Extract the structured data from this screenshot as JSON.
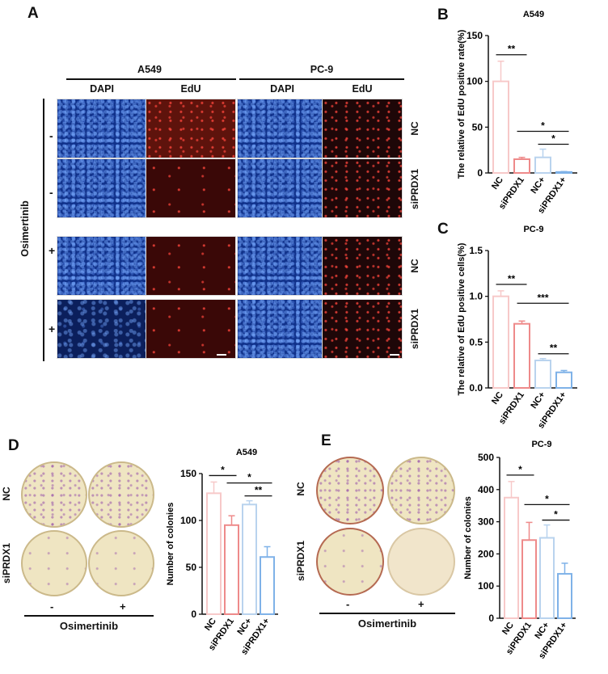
{
  "panel_letters": {
    "A": "A",
    "B": "B",
    "C": "C",
    "D": "D",
    "E": "E"
  },
  "panel_a": {
    "cell_lines": [
      "A549",
      "PC-9"
    ],
    "channels": [
      "DAPI",
      "EdU"
    ],
    "treatment_label": "Osimertinib",
    "row_signs": [
      "-",
      "-",
      "+",
      "+"
    ],
    "row_groups": [
      "NC",
      "siPRDX1",
      "NC",
      "siPRDX1"
    ]
  },
  "panel_d": {
    "row_labels": [
      "NC",
      "siPRDX1"
    ],
    "col_signs": [
      "-",
      "+"
    ],
    "treatment_label": "Osimertinib"
  },
  "panel_e": {
    "row_labels": [
      "NC",
      "siPRDX1"
    ],
    "col_signs": [
      "-",
      "+"
    ],
    "treatment_label": "Osimertinib"
  },
  "colors": {
    "nc": "#f7c9c9",
    "sipdx1": "#ee8a8a",
    "nc_plus": "#b9d3ee",
    "sipdx1_plus": "#7fb2e8"
  },
  "chart_data": [
    {
      "id": "B",
      "type": "bar",
      "title": "A549",
      "ylabel": "The relative of EdU positive rate(%)",
      "categories": [
        "NC",
        "siPRDX1",
        "NC+",
        "siPRDX1+"
      ],
      "values": [
        100,
        15,
        17,
        1
      ],
      "errors": [
        22,
        2,
        9,
        0.5
      ],
      "ylim": [
        0,
        150
      ],
      "yticks": [
        0,
        50,
        100,
        150
      ],
      "significance": [
        {
          "from": 0,
          "to": 1,
          "label": "**"
        },
        {
          "from": 1,
          "to": 3,
          "label": "*"
        },
        {
          "from": 2,
          "to": 3,
          "label": "*"
        }
      ]
    },
    {
      "id": "C",
      "type": "bar",
      "title": "PC-9",
      "ylabel": "The relative of EdU positive cells(%)",
      "categories": [
        "NC",
        "siPRDX1",
        "NC+",
        "siPRDX1+"
      ],
      "values": [
        1.0,
        0.7,
        0.3,
        0.17
      ],
      "errors": [
        0.06,
        0.03,
        0.02,
        0.02
      ],
      "ylim": [
        0,
        1.5
      ],
      "yticks": [
        "0.0",
        "0.5",
        "1.0",
        "1.5"
      ],
      "significance": [
        {
          "from": 0,
          "to": 1,
          "label": "**"
        },
        {
          "from": 1,
          "to": 3,
          "label": "***"
        },
        {
          "from": 2,
          "to": 3,
          "label": "**"
        }
      ]
    },
    {
      "id": "D",
      "type": "bar",
      "title": "A549",
      "ylabel": "Number of colonies",
      "categories": [
        "NC",
        "siPRDX1",
        "NC+",
        "siPRDX1+"
      ],
      "values": [
        129,
        95,
        117,
        61
      ],
      "errors": [
        12,
        10,
        4,
        11
      ],
      "ylim": [
        0,
        150
      ],
      "yticks": [
        0,
        50,
        100,
        150
      ],
      "significance": [
        {
          "from": 0,
          "to": 1,
          "label": "*"
        },
        {
          "from": 1,
          "to": 3,
          "label": "*"
        },
        {
          "from": 2,
          "to": 3,
          "label": "**"
        }
      ]
    },
    {
      "id": "E",
      "type": "bar",
      "title": "PC-9",
      "ylabel": "Number of colonies",
      "categories": [
        "NC",
        "siPRDX1",
        "NC+",
        "siPRDX1+"
      ],
      "values": [
        375,
        243,
        250,
        138
      ],
      "errors": [
        50,
        55,
        40,
        33
      ],
      "ylim": [
        0,
        500
      ],
      "yticks": [
        0,
        100,
        200,
        300,
        400,
        500
      ],
      "significance": [
        {
          "from": 0,
          "to": 1,
          "label": "*"
        },
        {
          "from": 1,
          "to": 3,
          "label": "*"
        },
        {
          "from": 2,
          "to": 3,
          "label": "*"
        }
      ]
    }
  ]
}
